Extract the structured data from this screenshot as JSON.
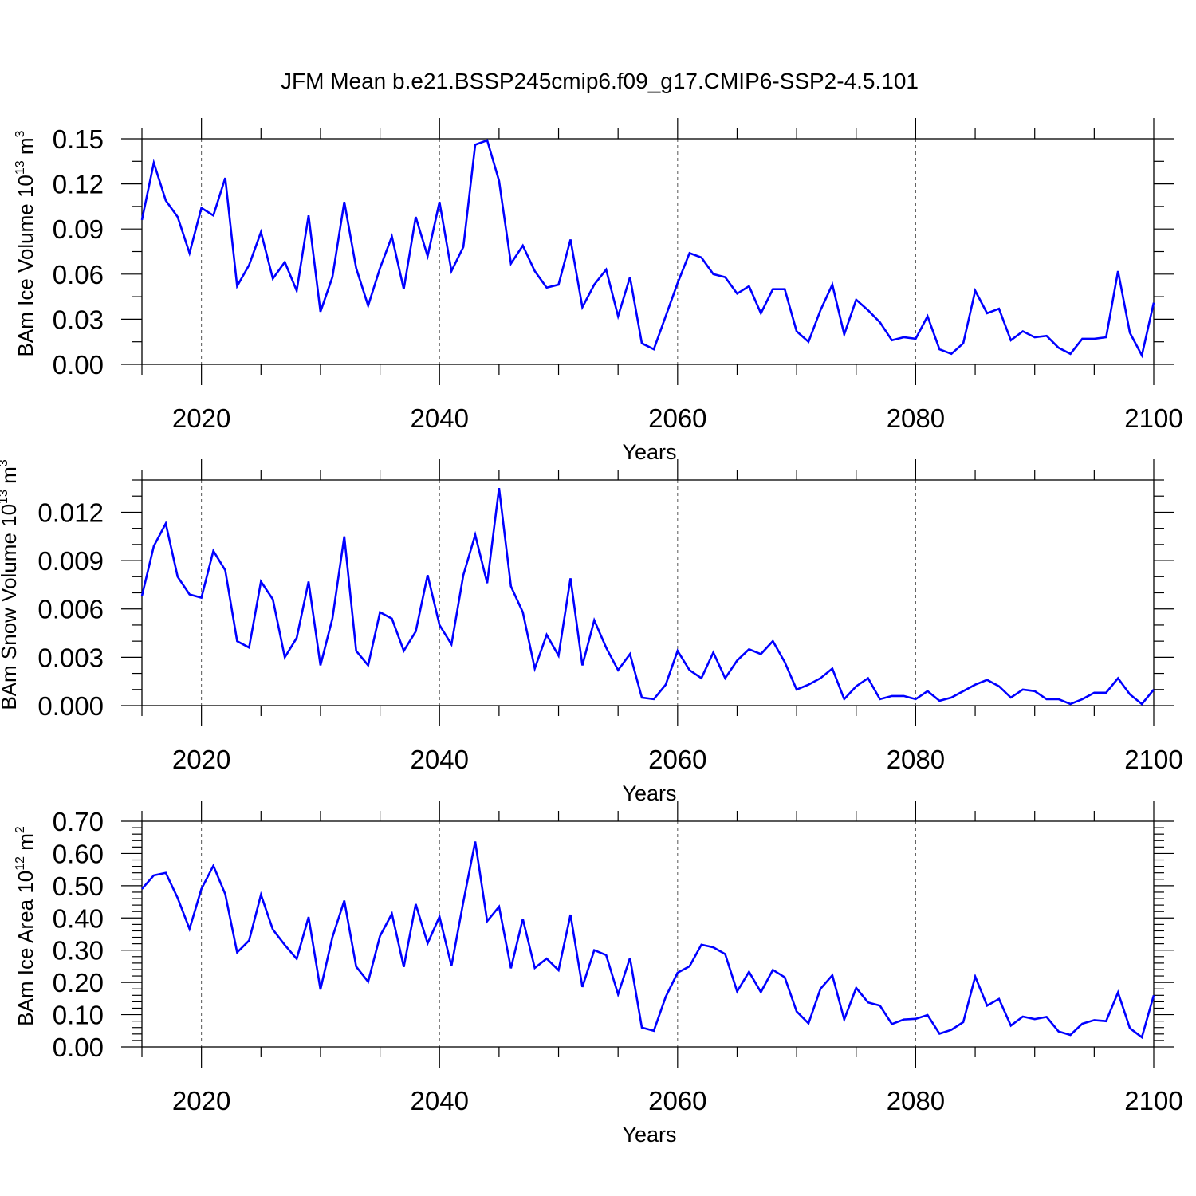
{
  "title": "JFM Mean b.e21.BSSP245cmip6.f09_g17.CMIP6-SSP2-4.5.101",
  "colors": {
    "line": "#0000ff",
    "axis": "#000000",
    "grid": "#555555"
  },
  "chart_data": [
    {
      "type": "line",
      "ylabel": {
        "text": "BAm Ice Volume 10",
        "exp": "13",
        "unit": " m",
        "unit_exp": "3"
      },
      "xlabel": "Years",
      "xlim": [
        2015,
        2100
      ],
      "ylim": [
        0,
        0.15
      ],
      "xticks": [
        2020,
        2040,
        2060,
        2080,
        2100
      ],
      "xtick_labels": [
        "2020",
        "2040",
        "2060",
        "2080",
        "2100"
      ],
      "yticks": [
        0,
        0.03,
        0.06,
        0.09,
        0.12,
        0.15
      ],
      "ytick_labels": [
        "0.00",
        "0.03",
        "0.06",
        "0.09",
        "0.12",
        "0.15"
      ],
      "grid": "vertical dashed at major x ticks",
      "x_start": 2015,
      "values": [
        0.096,
        0.134,
        0.109,
        0.098,
        0.074,
        0.104,
        0.099,
        0.124,
        0.052,
        0.066,
        0.088,
        0.057,
        0.068,
        0.049,
        0.099,
        0.035,
        0.058,
        0.108,
        0.064,
        0.039,
        0.064,
        0.085,
        0.05,
        0.098,
        0.072,
        0.108,
        0.062,
        0.078,
        0.146,
        0.149,
        0.122,
        0.067,
        0.079,
        0.062,
        0.051,
        0.053,
        0.083,
        0.038,
        0.053,
        0.063,
        0.032,
        0.058,
        0.014,
        0.01,
        0.032,
        0.054,
        0.074,
        0.071,
        0.06,
        0.058,
        0.047,
        0.052,
        0.034,
        0.05,
        0.05,
        0.022,
        0.015,
        0.036,
        0.053,
        0.02,
        0.043,
        0.036,
        0.028,
        0.016,
        0.018,
        0.017,
        0.032,
        0.01,
        0.007,
        0.014,
        0.049,
        0.034,
        0.037,
        0.016,
        0.022,
        0.018,
        0.019,
        0.011,
        0.007,
        0.017,
        0.017,
        0.018,
        0.062,
        0.021,
        0.006,
        0.041
      ]
    },
    {
      "type": "line",
      "ylabel": {
        "text": "BAm Snow Volume 10",
        "exp": "13",
        "unit": " m",
        "unit_exp": "3"
      },
      "xlabel": "Years",
      "xlim": [
        2015,
        2100
      ],
      "ylim": [
        0,
        0.014
      ],
      "xticks": [
        2020,
        2040,
        2060,
        2080,
        2100
      ],
      "xtick_labels": [
        "2020",
        "2040",
        "2060",
        "2080",
        "2100"
      ],
      "yticks": [
        0,
        0.003,
        0.006,
        0.009,
        0.012
      ],
      "ytick_labels": [
        "0.000",
        "0.003",
        "0.006",
        "0.009",
        "0.012"
      ],
      "grid": "vertical dashed at major x ticks",
      "x_start": 2015,
      "values": [
        0.0068,
        0.0099,
        0.0113,
        0.008,
        0.0069,
        0.0067,
        0.0096,
        0.0084,
        0.004,
        0.0036,
        0.0077,
        0.0066,
        0.003,
        0.0042,
        0.0077,
        0.0025,
        0.0054,
        0.0105,
        0.0034,
        0.0025,
        0.0058,
        0.0054,
        0.0034,
        0.0046,
        0.0081,
        0.005,
        0.0038,
        0.0081,
        0.0106,
        0.0076,
        0.0135,
        0.0074,
        0.0058,
        0.0023,
        0.0044,
        0.0031,
        0.0079,
        0.0025,
        0.0053,
        0.0036,
        0.0022,
        0.0032,
        0.0005,
        0.0004,
        0.0013,
        0.0034,
        0.0022,
        0.0017,
        0.0033,
        0.0017,
        0.0028,
        0.0035,
        0.0032,
        0.004,
        0.0027,
        0.001,
        0.0013,
        0.0017,
        0.0023,
        0.0004,
        0.0012,
        0.0017,
        0.0004,
        0.0006,
        0.0006,
        0.0004,
        0.0009,
        0.0003,
        0.0005,
        0.0009,
        0.0013,
        0.0016,
        0.0012,
        0.0005,
        0.001,
        0.0009,
        0.0004,
        0.0004,
        0.0001,
        0.0004,
        0.0008,
        0.0008,
        0.0017,
        0.0007,
        0.0001,
        0.001
      ]
    },
    {
      "type": "line",
      "ylabel": {
        "text": "BAm Ice Area 10",
        "exp": "12",
        "unit": " m",
        "unit_exp": "2"
      },
      "xlabel": "Years",
      "xlim": [
        2015,
        2100
      ],
      "ylim": [
        0,
        0.7
      ],
      "xticks": [
        2020,
        2040,
        2060,
        2080,
        2100
      ],
      "xtick_labels": [
        "2020",
        "2040",
        "2060",
        "2080",
        "2100"
      ],
      "yticks": [
        0,
        0.1,
        0.2,
        0.3,
        0.4,
        0.5,
        0.6,
        0.7
      ],
      "ytick_labels": [
        "0.00",
        "0.10",
        "0.20",
        "0.30",
        "0.40",
        "0.50",
        "0.60",
        "0.70"
      ],
      "grid": "vertical dashed at major x ticks",
      "x_start": 2015,
      "values": [
        0.49,
        0.532,
        0.54,
        0.462,
        0.366,
        0.49,
        0.562,
        0.474,
        0.293,
        0.33,
        0.472,
        0.364,
        0.316,
        0.273,
        0.403,
        0.178,
        0.34,
        0.454,
        0.249,
        0.202,
        0.344,
        0.413,
        0.248,
        0.443,
        0.321,
        0.404,
        0.251,
        0.45,
        0.637,
        0.39,
        0.435,
        0.244,
        0.397,
        0.245,
        0.274,
        0.238,
        0.41,
        0.186,
        0.3,
        0.285,
        0.163,
        0.276,
        0.06,
        0.05,
        0.155,
        0.23,
        0.25,
        0.317,
        0.309,
        0.288,
        0.172,
        0.233,
        0.17,
        0.239,
        0.216,
        0.11,
        0.073,
        0.18,
        0.222,
        0.085,
        0.183,
        0.138,
        0.128,
        0.071,
        0.085,
        0.087,
        0.099,
        0.041,
        0.053,
        0.077,
        0.218,
        0.128,
        0.149,
        0.066,
        0.094,
        0.086,
        0.093,
        0.048,
        0.037,
        0.072,
        0.083,
        0.08,
        0.169,
        0.058,
        0.03,
        0.16
      ]
    }
  ]
}
